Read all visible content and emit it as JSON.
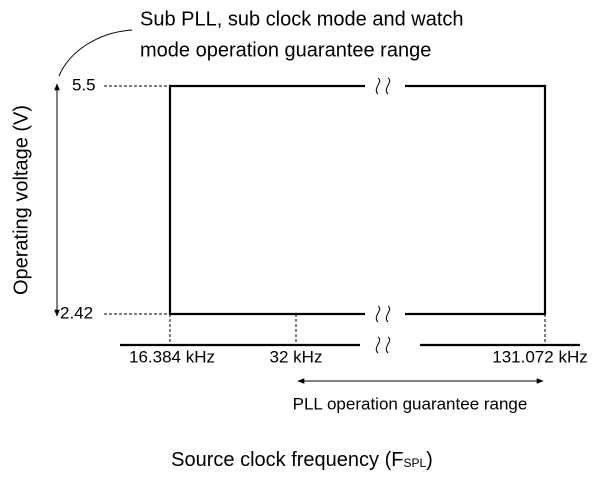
{
  "annotation_top": [
    "Sub PLL, sub clock mode and watch",
    "mode operation guarantee range"
  ],
  "y_axis_label": "Operating voltage (V)",
  "y_labels": [
    "5.5",
    "2.42"
  ],
  "x_labels": [
    "16.384 kHz",
    "32 kHz",
    "131.072 kHz"
  ],
  "annotation_range": "PLL operation guarantee range",
  "x_axis_label": {
    "text": "Source clock frequency (F",
    "subscript": "SPL",
    "suffix": ")"
  }
}
